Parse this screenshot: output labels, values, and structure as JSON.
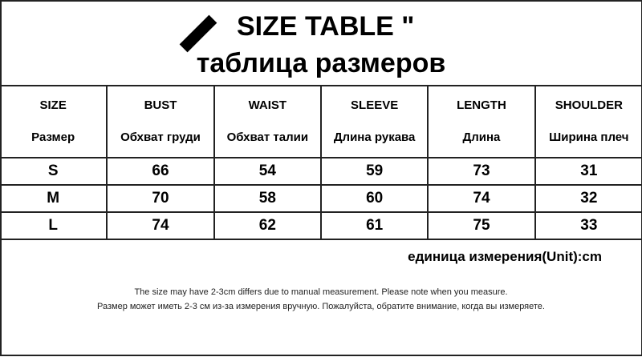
{
  "header": {
    "title": "SIZE TABLE \"",
    "subtitle": "таблица размеров",
    "icon": "pen-icon"
  },
  "table": {
    "columns": [
      {
        "en": "SIZE",
        "ru": "Размер"
      },
      {
        "en": "BUST",
        "ru": "Обхват груди"
      },
      {
        "en": "WAIST",
        "ru": "Обхват талии"
      },
      {
        "en": "SLEEVE",
        "ru": "Длина рукава"
      },
      {
        "en": "LENGTH",
        "ru": "Длина"
      },
      {
        "en": "SHOULDER",
        "ru": "Ширина плеч"
      }
    ],
    "rows": [
      [
        "S",
        "66",
        "54",
        "59",
        "73",
        "31"
      ],
      [
        "M",
        "70",
        "58",
        "60",
        "74",
        "32"
      ],
      [
        "L",
        "74",
        "62",
        "61",
        "75",
        "33"
      ]
    ]
  },
  "footer": {
    "unit": "единица измерения(Unit):cm",
    "note_en": "The size may have 2-3cm differs due to manual measurement. Please note when you measure.",
    "note_ru": "Размер может иметь 2-3 см из-за измерения вручную. Пожалуйста, обратите внимание, когда вы измеряете."
  }
}
